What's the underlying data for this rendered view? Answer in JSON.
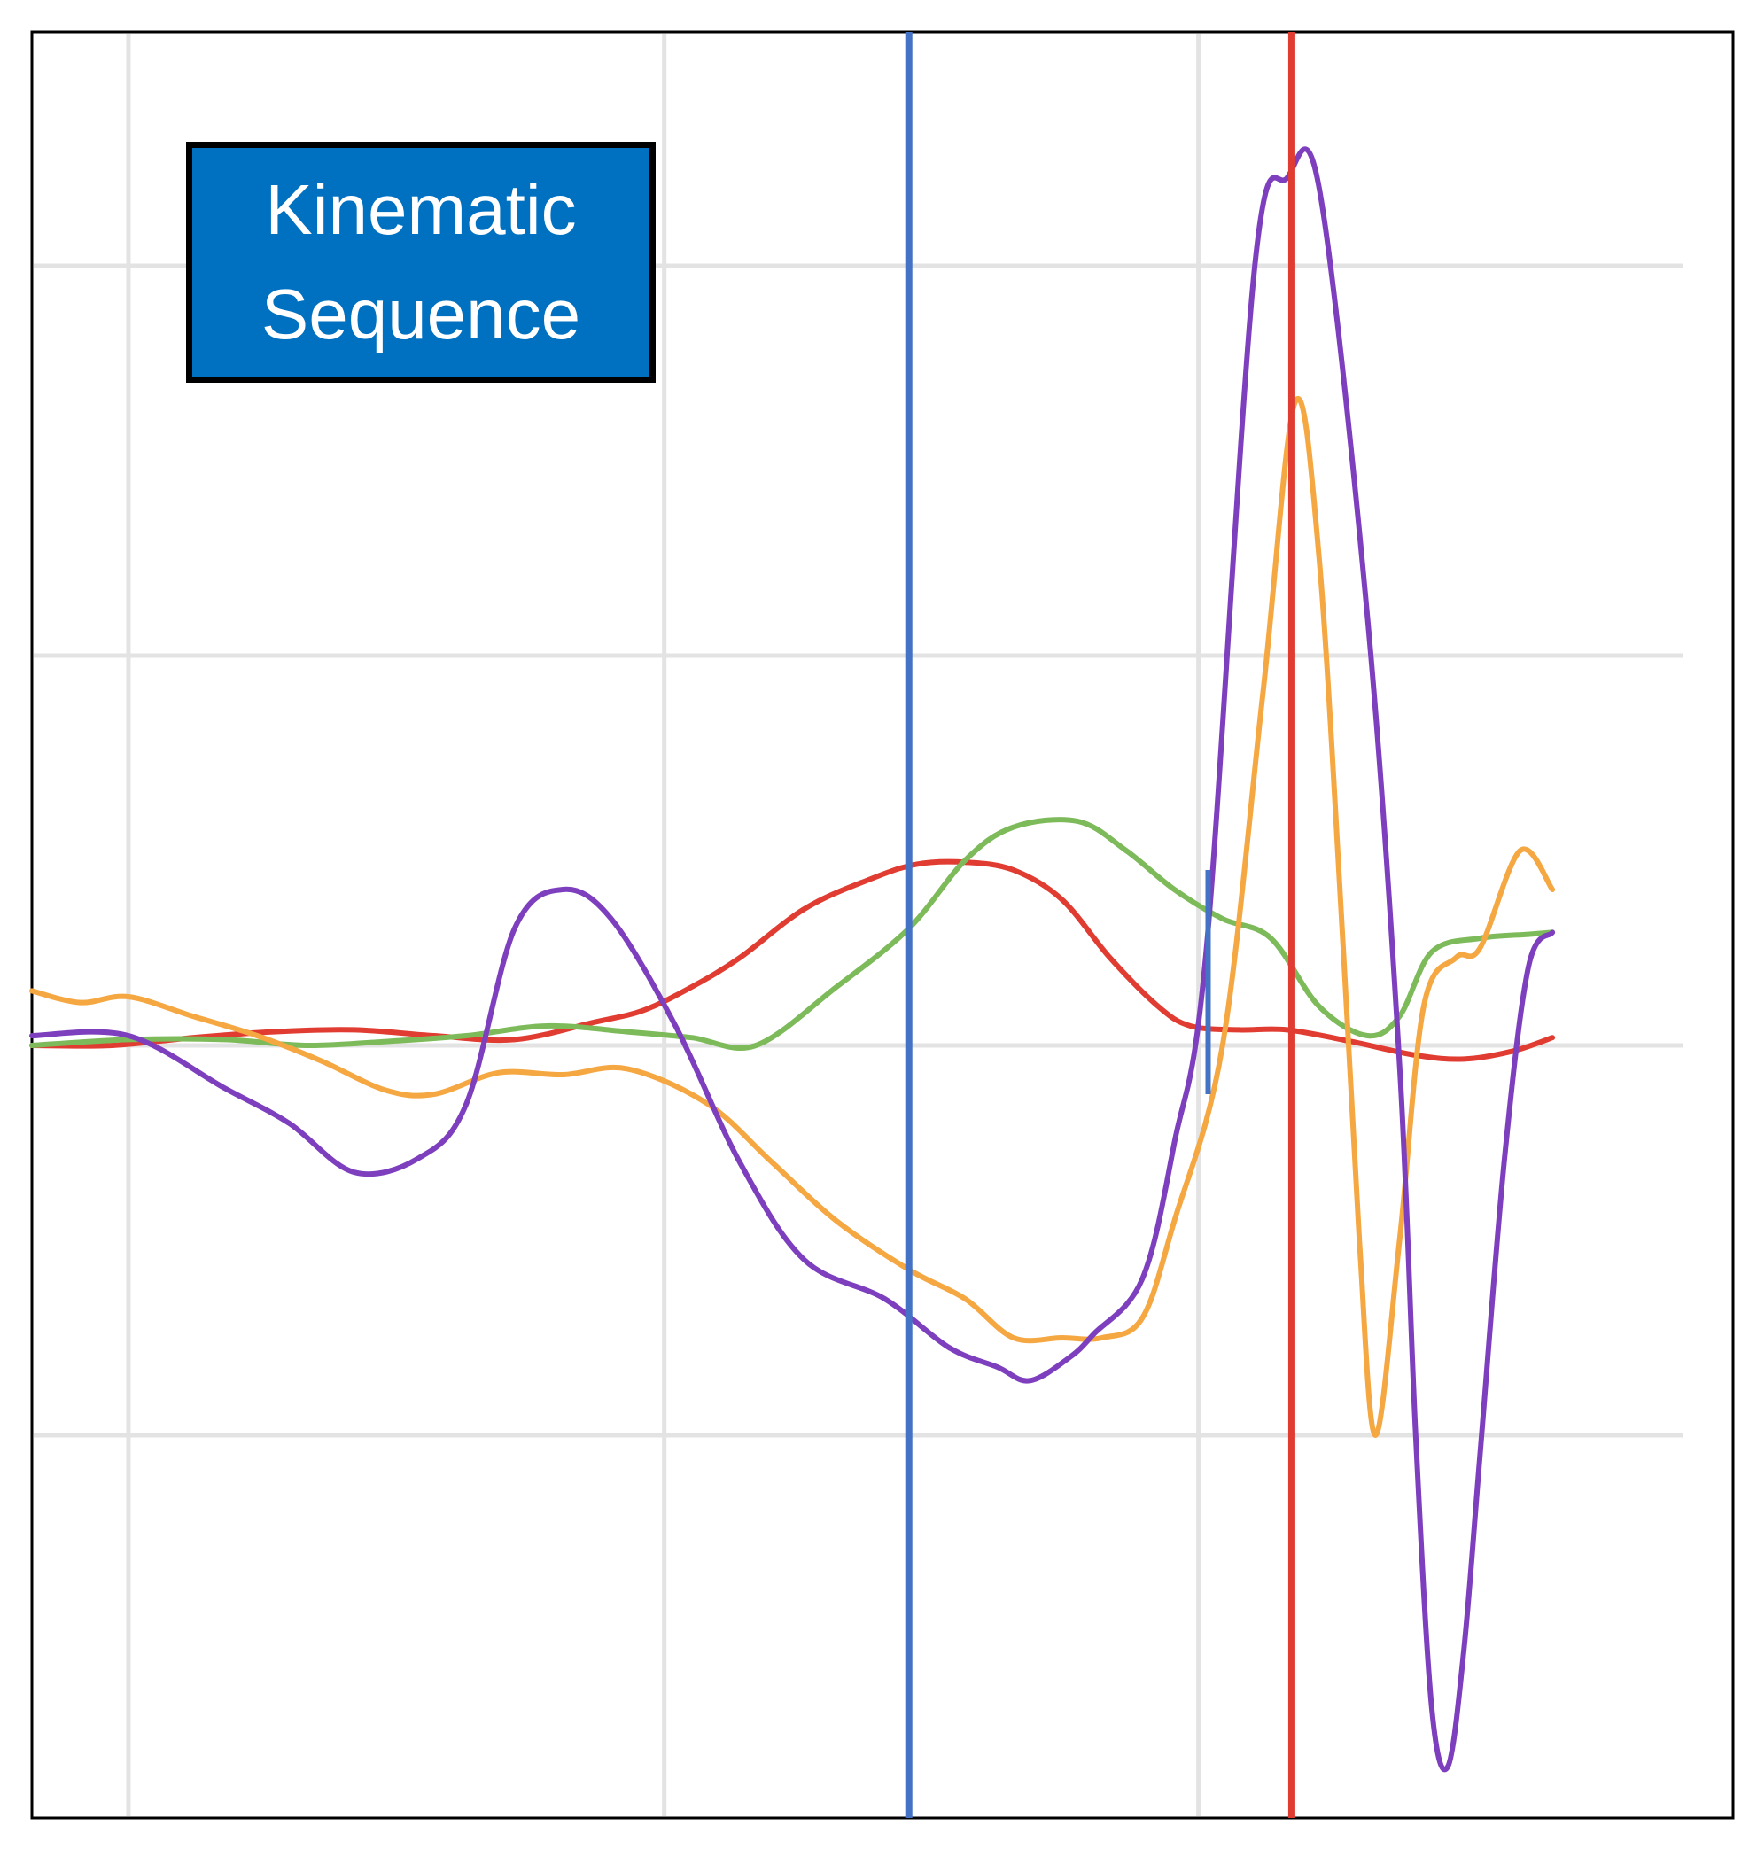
{
  "chart_data": {
    "type": "line",
    "title": "Kinematic\nSequence",
    "title_box_color": "#0070C0",
    "xlim": [
      0,
      1000
    ],
    "ylim": [
      -400,
      600
    ],
    "x_gridlines": [
      60,
      393,
      725
    ],
    "y_gridlines": [
      -200,
      0,
      200,
      400
    ],
    "grid": true,
    "legend": "none",
    "event_lines": [
      {
        "x": 545,
        "color": "#4472C4"
      },
      {
        "x": 783,
        "color": "#E03C31"
      }
    ],
    "event_marker": {
      "x": 731,
      "y_range": [
        -25,
        90
      ],
      "color": "#4472C4"
    },
    "series": [
      {
        "color": "#E03C31",
        "points": [
          [
            0,
            0
          ],
          [
            50,
            0
          ],
          [
            100,
            4
          ],
          [
            150,
            7
          ],
          [
            200,
            8
          ],
          [
            250,
            5
          ],
          [
            300,
            3
          ],
          [
            350,
            12
          ],
          [
            380,
            18
          ],
          [
            410,
            30
          ],
          [
            440,
            45
          ],
          [
            480,
            70
          ],
          [
            520,
            85
          ],
          [
            550,
            93
          ],
          [
            580,
            94
          ],
          [
            610,
            90
          ],
          [
            640,
            75
          ],
          [
            670,
            45
          ],
          [
            700,
            20
          ],
          [
            720,
            10
          ],
          [
            750,
            8
          ],
          [
            780,
            8
          ],
          [
            820,
            2
          ],
          [
            860,
            -5
          ],
          [
            890,
            -7
          ],
          [
            920,
            -3
          ],
          [
            945,
            4
          ]
        ]
      },
      {
        "color": "#7DBA5A",
        "points": [
          [
            0,
            0
          ],
          [
            60,
            3
          ],
          [
            120,
            3
          ],
          [
            170,
            0
          ],
          [
            220,
            2
          ],
          [
            270,
            5
          ],
          [
            320,
            10
          ],
          [
            370,
            7
          ],
          [
            410,
            4
          ],
          [
            450,
            0
          ],
          [
            500,
            30
          ],
          [
            545,
            60
          ],
          [
            580,
            95
          ],
          [
            610,
            112
          ],
          [
            650,
            115
          ],
          [
            680,
            100
          ],
          [
            710,
            80
          ],
          [
            740,
            65
          ],
          [
            770,
            55
          ],
          [
            800,
            20
          ],
          [
            830,
            5
          ],
          [
            850,
            15
          ],
          [
            870,
            48
          ],
          [
            900,
            55
          ],
          [
            930,
            57
          ],
          [
            945,
            58
          ]
        ]
      },
      {
        "color": "#F5A742",
        "points": [
          [
            0,
            28
          ],
          [
            30,
            22
          ],
          [
            60,
            25
          ],
          [
            100,
            15
          ],
          [
            140,
            5
          ],
          [
            180,
            -8
          ],
          [
            220,
            -23
          ],
          [
            250,
            -25
          ],
          [
            290,
            -14
          ],
          [
            330,
            -15
          ],
          [
            370,
            -12
          ],
          [
            420,
            -30
          ],
          [
            460,
            -60
          ],
          [
            500,
            -90
          ],
          [
            545,
            -115
          ],
          [
            580,
            -130
          ],
          [
            610,
            -150
          ],
          [
            640,
            -150
          ],
          [
            665,
            -150
          ],
          [
            690,
            -140
          ],
          [
            710,
            -90
          ],
          [
            740,
            0
          ],
          [
            765,
            180
          ],
          [
            785,
            330
          ],
          [
            800,
            250
          ],
          [
            815,
            50
          ],
          [
            825,
            -100
          ],
          [
            835,
            -200
          ],
          [
            850,
            -100
          ],
          [
            865,
            20
          ],
          [
            885,
            45
          ],
          [
            900,
            50
          ],
          [
            925,
            100
          ],
          [
            945,
            80
          ]
        ]
      },
      {
        "color": "#7D3FBE",
        "points": [
          [
            0,
            5
          ],
          [
            60,
            5
          ],
          [
            120,
            -22
          ],
          [
            160,
            -40
          ],
          [
            200,
            -65
          ],
          [
            240,
            -58
          ],
          [
            270,
            -30
          ],
          [
            300,
            60
          ],
          [
            330,
            80
          ],
          [
            360,
            65
          ],
          [
            400,
            10
          ],
          [
            440,
            -60
          ],
          [
            480,
            -110
          ],
          [
            530,
            -130
          ],
          [
            570,
            -155
          ],
          [
            600,
            -165
          ],
          [
            620,
            -172
          ],
          [
            645,
            -160
          ],
          [
            660,
            -148
          ],
          [
            690,
            -120
          ],
          [
            710,
            -50
          ],
          [
            730,
            50
          ],
          [
            760,
            400
          ],
          [
            780,
            445
          ],
          [
            800,
            440
          ],
          [
            830,
            220
          ],
          [
            850,
            -10
          ],
          [
            860,
            -200
          ],
          [
            870,
            -340
          ],
          [
            880,
            -370
          ],
          [
            890,
            -310
          ],
          [
            900,
            -210
          ],
          [
            915,
            -60
          ],
          [
            930,
            40
          ],
          [
            945,
            58
          ]
        ]
      }
    ]
  }
}
